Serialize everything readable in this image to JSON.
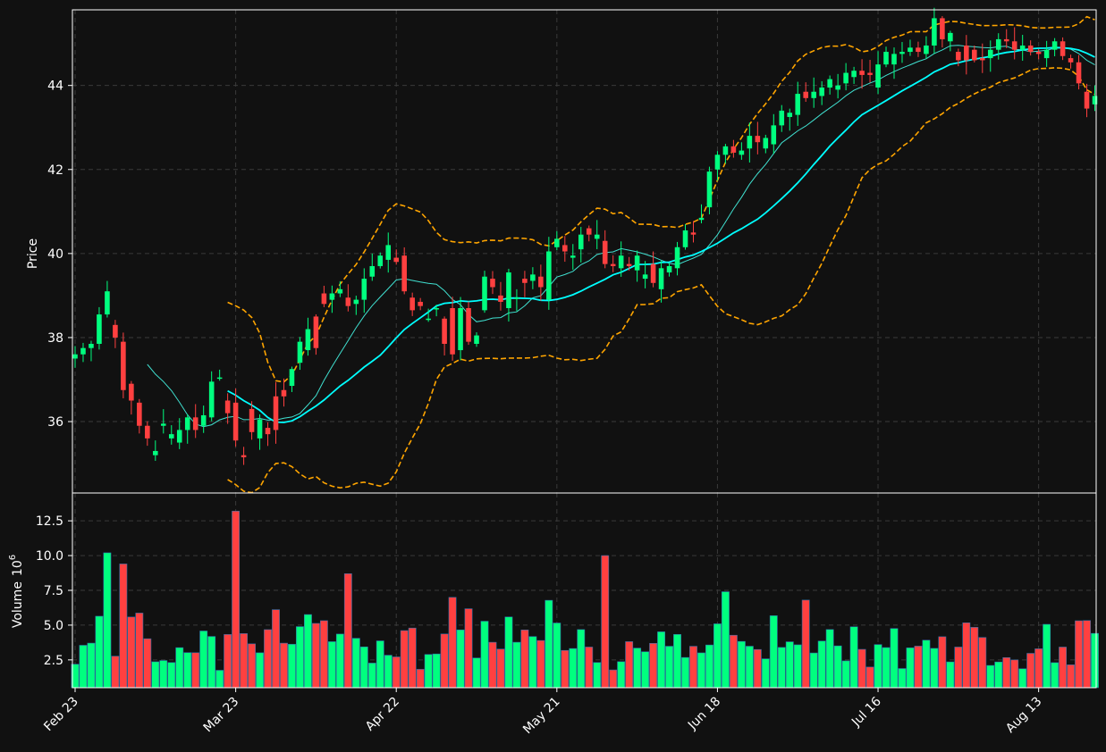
{
  "colors": {
    "background": "#111111",
    "up": "#00ff7f",
    "down": "#ff4040",
    "ma_short": "#40e0d0",
    "ma_long": "#00ffff",
    "band": "#ffa500",
    "grid": "#3a3a3a",
    "text": "#ffffff"
  },
  "chart_data": {
    "type": "candlestick",
    "price_axis": {
      "label": "Price",
      "ticks": [
        36,
        38,
        40,
        42,
        44
      ],
      "range": [
        34.3,
        45.8
      ]
    },
    "volume_axis": {
      "label": "Volume",
      "multiplier_label": "10",
      "multiplier_exp": "6",
      "ticks": [
        "2.5",
        "5.0",
        "7.5",
        "10.0",
        "12.5"
      ],
      "tick_values": [
        2.5,
        5.0,
        7.5,
        10.0,
        12.5
      ],
      "range": [
        0.5,
        14.5
      ]
    },
    "x_ticks": [
      {
        "label": "Feb 23",
        "index": 0
      },
      {
        "label": "Mar 23",
        "index": 20
      },
      {
        "label": "Apr 22",
        "index": 40
      },
      {
        "label": "May 21",
        "index": 60
      },
      {
        "label": "Jun 18",
        "index": 80
      },
      {
        "label": "Jul 16",
        "index": 100
      },
      {
        "label": "Aug 13",
        "index": 120
      }
    ],
    "grid": true,
    "closes": [
      37.6,
      37.75,
      37.85,
      38.55,
      39.1,
      38.0,
      36.75,
      36.5,
      35.9,
      35.6,
      35.3,
      35.95,
      35.7,
      35.8,
      36.1,
      35.8,
      36.15,
      36.95,
      37.05,
      36.2,
      35.55,
      35.15,
      35.75,
      36.05,
      35.7,
      35.8,
      36.6,
      37.25,
      37.9,
      38.2,
      37.75,
      38.8,
      39.05,
      39.15,
      38.75,
      38.9,
      39.4,
      39.7,
      39.95,
      40.2,
      39.8,
      39.1,
      38.65,
      38.75,
      38.45,
      38.7,
      37.85,
      37.6,
      38.7,
      37.9,
      38.05,
      39.45,
      39.2,
      38.85,
      39.55,
      38.95,
      39.3,
      39.5,
      39.2,
      40.05,
      40.35,
      40.05,
      39.95,
      40.45,
      40.45,
      40.45,
      39.75,
      39.7,
      39.95,
      39.7,
      39.95,
      39.5,
      39.3,
      39.65,
      39.7,
      40.15,
      40.55,
      40.45,
      40.85,
      41.95,
      42.35,
      42.55,
      42.4,
      42.45,
      42.8,
      42.65,
      42.75,
      43.05,
      43.4,
      43.35,
      43.8,
      43.7,
      43.85,
      43.95,
      44.15,
      44.0,
      44.3,
      44.35,
      44.25,
      44.25,
      44.5,
      44.8,
      44.75,
      44.8,
      44.9,
      44.8,
      44.95,
      45.6,
      45.1,
      45.25,
      44.6,
      44.6,
      44.6,
      44.6,
      44.85,
      45.1,
      45.05,
      44.85,
      44.95,
      44.8,
      44.75,
      44.85,
      45.05,
      44.7,
      44.55,
      44.05,
      43.45,
      43.75
    ],
    "opens": [
      37.5,
      37.6,
      37.75,
      37.85,
      38.55,
      38.3,
      37.9,
      36.9,
      36.45,
      35.9,
      35.2,
      35.9,
      35.6,
      35.5,
      35.8,
      36.1,
      35.9,
      36.1,
      37.05,
      36.5,
      36.45,
      35.2,
      36.3,
      35.6,
      35.85,
      36.6,
      36.75,
      36.85,
      37.4,
      37.7,
      38.5,
      39.05,
      38.9,
      39.05,
      38.95,
      38.8,
      38.9,
      39.45,
      39.7,
      39.85,
      39.9,
      39.95,
      38.95,
      38.85,
      38.45,
      38.7,
      38.45,
      38.7,
      37.7,
      38.7,
      37.85,
      38.65,
      39.4,
      39.0,
      38.7,
      38.95,
      39.4,
      39.35,
      39.45,
      38.9,
      40.15,
      40.2,
      39.9,
      40.1,
      40.6,
      40.35,
      40.3,
      39.75,
      39.65,
      39.75,
      39.6,
      39.4,
      39.75,
      39.15,
      39.55,
      39.65,
      40.15,
      40.5,
      40.8,
      41.1,
      42.0,
      42.35,
      42.55,
      42.35,
      42.5,
      42.8,
      42.5,
      42.6,
      43.05,
      43.25,
      43.3,
      43.85,
      43.7,
      43.75,
      43.95,
      43.9,
      44.05,
      44.2,
      44.35,
      44.3,
      43.95,
      44.5,
      44.5,
      44.75,
      44.8,
      44.9,
      44.75,
      44.95,
      45.6,
      45.05,
      44.8,
      44.95,
      44.85,
      44.65,
      44.65,
      44.85,
      45.1,
      45.05,
      44.85,
      44.95,
      44.8,
      44.65,
      44.85,
      45.05,
      44.65,
      44.55,
      43.85,
      43.55
    ]
  }
}
